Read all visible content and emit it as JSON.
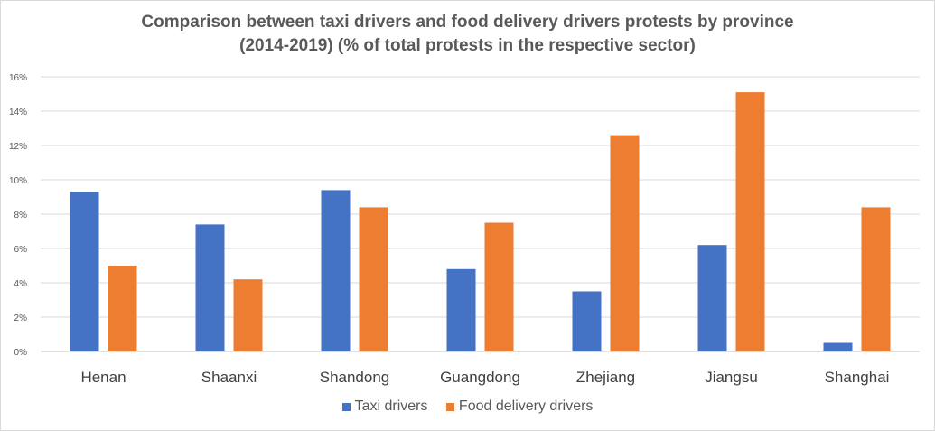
{
  "chart_data": {
    "type": "bar",
    "title_line1": "Comparison between taxi drivers and food delivery drivers protests by province",
    "title_line2": "(2014-2019)  (% of total protests in the respective sector)",
    "categories": [
      "Henan",
      "Shaanxi",
      "Shandong",
      "Guangdong",
      "Zhejiang",
      "Jiangsu",
      "Shanghai"
    ],
    "series": [
      {
        "name": "Taxi drivers",
        "color": "#4472c4",
        "values": [
          9.3,
          7.4,
          9.4,
          4.8,
          3.5,
          6.2,
          0.5
        ]
      },
      {
        "name": "Food delivery drivers",
        "color": "#ed7d31",
        "values": [
          5.0,
          4.2,
          8.4,
          7.5,
          12.6,
          15.1,
          8.4
        ]
      }
    ],
    "ylim": [
      0,
      16
    ],
    "yticks": [
      "0%",
      "2%",
      "4%",
      "6%",
      "8%",
      "10%",
      "12%",
      "14%",
      "16%"
    ],
    "grid": true,
    "legend_position": "bottom"
  }
}
